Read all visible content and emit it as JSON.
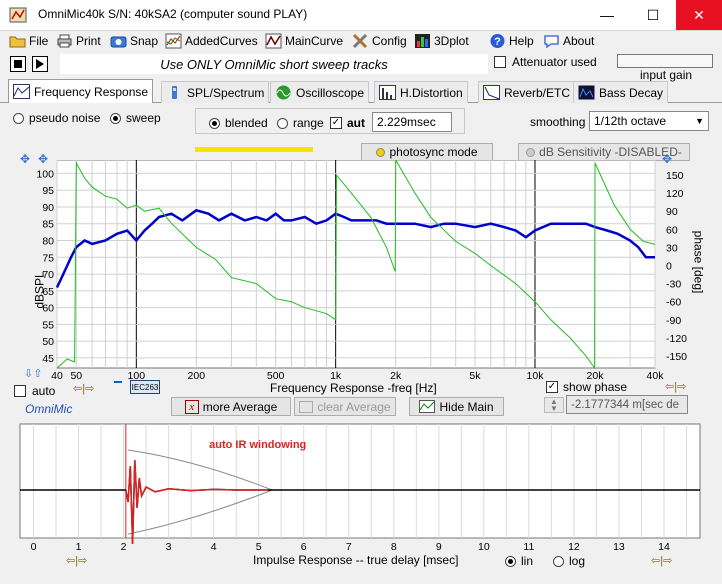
{
  "window": {
    "title": "OmniMic40k  S/N: 40kSA2  (computer sound PLAY)",
    "minimize": "—",
    "maximize": "☐",
    "close": "✕"
  },
  "menu": [
    {
      "label": "File",
      "icon": "folder-icon"
    },
    {
      "label": "Print",
      "icon": "printer-icon"
    },
    {
      "label": "Snap",
      "icon": "camera-icon"
    },
    {
      "label": "AddedCurves",
      "icon": "added-curves-icon"
    },
    {
      "label": "MainCurve",
      "icon": "main-curve-icon"
    },
    {
      "label": "Config",
      "icon": "config-icon"
    },
    {
      "label": "3Dplot",
      "icon": "3dplot-icon"
    },
    {
      "label": "Help",
      "icon": "help-icon"
    },
    {
      "label": "About",
      "icon": "about-icon"
    }
  ],
  "banner": "Use ONLY OmniMic  short sweep tracks",
  "attenuator": {
    "label": "Attenuator used",
    "checked": false
  },
  "input_gain": {
    "label": "input gain"
  },
  "tabs": [
    {
      "label": "Frequency Response",
      "active": true
    },
    {
      "label": "SPL/Spectrum",
      "active": false
    },
    {
      "label": "Oscilloscope",
      "active": false
    },
    {
      "label": "H.Distortion",
      "active": false
    },
    {
      "label": "Reverb/ETC",
      "active": false
    },
    {
      "label": "Bass Decay",
      "active": false
    }
  ],
  "controls": {
    "pseudo_noise": "pseudo noise",
    "sweep": "sweep",
    "blended": "blended",
    "range": "range",
    "aut": "aut",
    "delay_value": "2.229msec",
    "smoothing_label": "smoothing",
    "smoothing_value": "1/12th octave",
    "photosync": "photosync mode",
    "dB_sensitivity": "dB Sensitivity -DISABLED-"
  },
  "freq_plot": {
    "ylabel": "dBSPL",
    "y2label": "phase [deg]",
    "xlabel": "Frequency Response -freq [Hz]",
    "y_ticks": [
      "100",
      "95",
      "90",
      "85",
      "80",
      "75",
      "70",
      "65",
      "60",
      "55",
      "50",
      "45"
    ],
    "y2_ticks": [
      "150",
      "120",
      "90",
      "60",
      "30",
      "0",
      "-30",
      "-60",
      "-90",
      "-120",
      "-150"
    ],
    "x_ticks": [
      "40",
      "50",
      "100",
      "200",
      "500",
      "1k",
      "2k",
      "5k",
      "10k",
      "20k",
      "40k"
    ]
  },
  "chart_data": [
    {
      "type": "line",
      "xlabel": "Frequency Response -freq [Hz]",
      "ylabel": "dBSPL",
      "y2label": "phase [deg]",
      "xscale": "log",
      "xlim": [
        40,
        40000
      ],
      "ylim": [
        42,
        104
      ],
      "y2lim": [
        -170,
        175
      ],
      "grid": true,
      "series": [
        {
          "axis": "left",
          "color": "#0000cc",
          "x": [
            40,
            43,
            47,
            50,
            55,
            60,
            70,
            80,
            90,
            100,
            110,
            120,
            130,
            150,
            170,
            200,
            230,
            260,
            300,
            350,
            400,
            450,
            500,
            550,
            600,
            700,
            800,
            900,
            1000,
            1100,
            1200,
            1400,
            1600,
            1800,
            2000,
            2500,
            3000,
            3500,
            4000,
            5000,
            6000,
            7000,
            8000,
            9000,
            10000,
            12000,
            14000,
            16000,
            18000,
            20000,
            23000,
            26000,
            30000,
            33000,
            36000,
            40000
          ],
          "y": [
            66,
            70,
            75,
            78,
            80,
            79,
            80,
            82,
            83,
            80,
            83,
            85,
            87,
            88,
            86,
            89,
            88,
            86,
            88,
            86,
            87,
            86,
            88,
            86,
            86,
            87,
            85,
            86,
            88,
            87,
            86,
            86,
            86,
            85,
            85,
            85,
            84,
            85,
            85,
            84,
            85,
            84,
            83,
            81,
            83,
            85,
            85,
            85,
            85,
            84,
            83,
            82,
            80,
            78,
            75,
            75
          ]
        },
        {
          "axis": "right",
          "color": "#22bb22",
          "x": [
            40,
            45,
            49,
            50,
            55,
            60,
            70,
            80,
            90,
            100,
            110,
            130,
            150,
            200,
            250,
            300,
            400,
            500,
            600,
            700,
            800,
            900,
            1000,
            1010,
            1200,
            1500,
            1800,
            1990,
            2000,
            2500,
            3000,
            4000,
            5000,
            6000,
            8000,
            10000,
            12000,
            15000,
            18000,
            19900,
            20000,
            25000,
            30000,
            35000,
            40000
          ],
          "y": [
            -170,
            -155,
            -160,
            170,
            145,
            130,
            115,
            110,
            95,
            100,
            90,
            95,
            70,
            30,
            10,
            -20,
            -30,
            -55,
            -60,
            -70,
            -75,
            -80,
            -90,
            150,
            120,
            80,
            30,
            -10,
            175,
            120,
            80,
            40,
            20,
            0,
            -30,
            -60,
            -90,
            -120,
            -150,
            -170,
            170,
            100,
            60,
            40,
            35
          ]
        }
      ]
    },
    {
      "type": "line",
      "xlabel": "Impulse Response  -- true delay [msec]",
      "xlim": [
        -0.3,
        14.8
      ],
      "x_ticks": [
        "0",
        "1",
        "2",
        "3",
        "4",
        "5",
        "6",
        "7",
        "8",
        "9",
        "10",
        "11",
        "12",
        "13",
        "14"
      ],
      "grid": true,
      "annotation": "auto IR windowing",
      "series": [
        {
          "color": "#000000",
          "x": [
            -0.3,
            2.05,
            2.1,
            2.15,
            2.2,
            2.25,
            2.3,
            2.35,
            2.4,
            2.5,
            2.7,
            3,
            3.5,
            4,
            4.5,
            5,
            6,
            8,
            10,
            12,
            14.8
          ],
          "y": [
            0,
            0,
            -0.2,
            0.4,
            -0.9,
            0.5,
            -0.3,
            0.2,
            -0.1,
            0.05,
            -0.03,
            0.02,
            -0.01,
            0.01,
            0,
            0,
            0,
            0,
            0,
            0,
            0
          ]
        },
        {
          "color": "#dd2222",
          "x": [
            2.05,
            2.1,
            2.15,
            2.2,
            2.25,
            2.3,
            2.35,
            2.4,
            2.5,
            2.7,
            3,
            3.5,
            4,
            4.5,
            5.2
          ],
          "y": [
            0,
            -0.2,
            0.4,
            -0.9,
            0.5,
            -0.3,
            0.2,
            -0.1,
            0.05,
            -0.03,
            0.02,
            -0.01,
            0.01,
            0,
            0
          ]
        }
      ]
    }
  ],
  "freq_bottom": {
    "auto_label": "auto",
    "iec": "IEC263",
    "show_phase_label": "show phase",
    "phase_value": "-2.1777344 m[sec de",
    "more_average": "more Average",
    "clear_average": "clear Average",
    "hide_main": "Hide Main",
    "omnimic": "OmniMic"
  },
  "impulse": {
    "xlabel": "Impulse Response  -- true delay [msec]",
    "annotation": "auto IR windowing",
    "lin": "lin",
    "log": "log"
  },
  "colors": {
    "main_curve": "#0000cc",
    "phase_curve": "#22bb22",
    "ir_window": "#dd2222",
    "close": "#e81123"
  }
}
